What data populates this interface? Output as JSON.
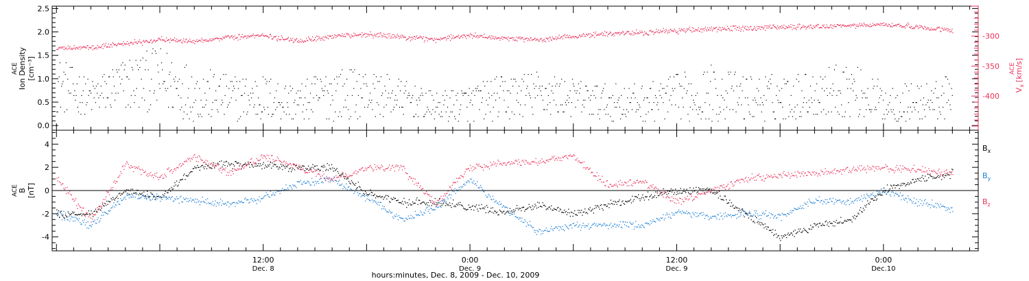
{
  "chart_data": [
    {
      "panel": "top",
      "type": "scatter",
      "ylabel_left": {
        "mission": "ACE",
        "quantity": "Ion Density",
        "unit": "[cm⁻³]"
      },
      "ylabel_right": {
        "mission": "ACE",
        "symbol": "V",
        "subscript": "x",
        "unit": "[km/s]"
      },
      "ylim_left": [
        -0.1,
        2.55
      ],
      "yticks_left": [
        "0.0",
        "0.5",
        "1.0",
        "1.5",
        "2.0",
        "2.5"
      ],
      "ylim_right": [
        -457,
        -250
      ],
      "yticks_right": [
        "-300",
        "-350",
        "-400"
      ],
      "colors": {
        "density": "#000000",
        "vx": "#e8305a"
      },
      "series": [
        {
          "key": "density",
          "points_hours": [
            0,
            2,
            4,
            6,
            8,
            10,
            12,
            14,
            16,
            18,
            20,
            22,
            24,
            26,
            28,
            30,
            32,
            34,
            36,
            38,
            40,
            42,
            44,
            46,
            48,
            50,
            52
          ],
          "center_values": [
            0.9,
            0.6,
            0.9,
            1.0,
            0.7,
            0.6,
            0.6,
            0.5,
            0.7,
            0.7,
            0.6,
            0.4,
            0.5,
            0.6,
            0.7,
            0.6,
            0.5,
            0.5,
            0.6,
            0.7,
            0.6,
            0.6,
            0.7,
            0.8,
            0.5,
            0.5,
            0.6
          ],
          "spread_values": [
            0.6,
            0.4,
            0.6,
            0.7,
            0.6,
            0.5,
            0.5,
            0.4,
            0.6,
            0.5,
            0.4,
            0.3,
            0.4,
            0.5,
            0.5,
            0.4,
            0.4,
            0.4,
            0.5,
            0.6,
            0.5,
            0.5,
            0.5,
            0.6,
            0.4,
            0.4,
            0.5
          ]
        },
        {
          "key": "vx",
          "points_hours": [
            0,
            2,
            4,
            6,
            8,
            10,
            12,
            14,
            16,
            18,
            20,
            22,
            24,
            26,
            28,
            30,
            32,
            34,
            36,
            38,
            40,
            42,
            44,
            46,
            48,
            50,
            52
          ],
          "values": [
            -320,
            -318,
            -312,
            -306,
            -307,
            -302,
            -298,
            -308,
            -300,
            -296,
            -300,
            -305,
            -298,
            -303,
            -305,
            -300,
            -295,
            -294,
            -290,
            -288,
            -286,
            -284,
            -284,
            -282,
            -280,
            -284,
            -290
          ]
        }
      ]
    },
    {
      "panel": "bottom",
      "type": "scatter",
      "ylabel_left": {
        "mission": "ACE",
        "quantity": "B",
        "unit": "[nT]"
      },
      "ylim": [
        -5.2,
        5.2
      ],
      "yticks": [
        "4",
        "2",
        "0",
        "-2",
        "-4"
      ],
      "x_tick_labels": [
        {
          "time": "12:00",
          "date": "Dec. 8"
        },
        {
          "time": "0:00",
          "date": "Dec. 9"
        },
        {
          "time": "12:00",
          "date": "Dec. 9"
        },
        {
          "time": "0:00",
          "date": "Dec.10"
        }
      ],
      "x_tick_hours": [
        12,
        24,
        36,
        48
      ],
      "xlim_hours": [
        -0.25,
        53.5
      ],
      "xlabel": "hours:minutes, Dec. 8, 2009 - Dec. 10, 2009",
      "legend": [
        {
          "label": "B",
          "sub": "x",
          "color": "#000000"
        },
        {
          "label": "B",
          "sub": "y",
          "color": "#1f7fd6"
        },
        {
          "label": "B",
          "sub": "z",
          "color": "#e8305a"
        }
      ],
      "series": [
        {
          "name": "Bx",
          "color": "#000000",
          "points_hours": [
            0,
            2,
            4,
            6,
            8,
            10,
            12,
            14,
            16,
            18,
            20,
            22,
            24,
            26,
            28,
            30,
            32,
            34,
            36,
            38,
            40,
            42,
            44,
            46,
            48,
            50,
            52
          ],
          "values": [
            -2.0,
            -2.0,
            0.0,
            -0.6,
            2.0,
            2.3,
            2.2,
            2.0,
            2.0,
            -0.2,
            -1.0,
            -1.0,
            -1.4,
            -1.8,
            -1.2,
            -2.0,
            -1.2,
            -0.5,
            0.0,
            0.0,
            -2.0,
            -4.0,
            -3.0,
            -2.6,
            0.0,
            1.0,
            1.5
          ]
        },
        {
          "name": "By",
          "color": "#1f7fd6",
          "points_hours": [
            0,
            2,
            4,
            6,
            8,
            10,
            12,
            14,
            16,
            18,
            20,
            22,
            24,
            26,
            28,
            30,
            32,
            34,
            36,
            38,
            40,
            42,
            44,
            46,
            48,
            50,
            52
          ],
          "values": [
            -2.0,
            -3.0,
            -0.5,
            -0.5,
            -0.8,
            -1.2,
            -0.6,
            0.6,
            1.0,
            -0.5,
            -2.5,
            -1.5,
            1.0,
            -1.5,
            -3.5,
            -3.0,
            -3.0,
            -3.0,
            -1.8,
            -2.2,
            -2.0,
            -2.2,
            -0.8,
            -1.0,
            0.0,
            -1.0,
            -1.5
          ]
        },
        {
          "name": "Bz",
          "color": "#e8305a",
          "points_hours": [
            0,
            2,
            4,
            6,
            8,
            10,
            12,
            14,
            16,
            18,
            20,
            22,
            24,
            26,
            28,
            30,
            32,
            34,
            36,
            38,
            40,
            42,
            44,
            46,
            48,
            50,
            52
          ],
          "values": [
            1.0,
            -2.5,
            2.3,
            1.2,
            3.0,
            1.5,
            3.0,
            2.0,
            1.0,
            2.0,
            2.0,
            -1.0,
            2.0,
            2.5,
            2.5,
            3.0,
            0.5,
            0.8,
            -1.0,
            0.0,
            1.0,
            1.3,
            1.5,
            1.8,
            2.0,
            1.8,
            1.5
          ]
        }
      ]
    }
  ]
}
